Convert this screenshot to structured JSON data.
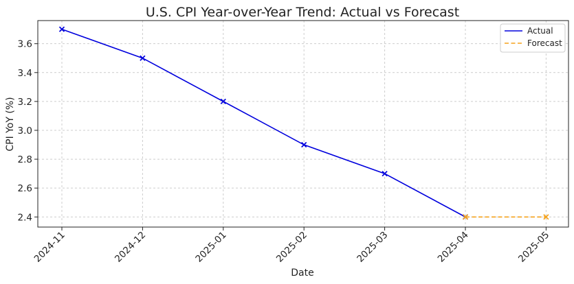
{
  "chart_data": {
    "type": "line",
    "title": "U.S. CPI Year-over-Year Trend: Actual vs Forecast",
    "xlabel": "Date",
    "ylabel": "CPI YoY (%)",
    "x_ticks": [
      "2024-11",
      "2024-12",
      "2025-01",
      "2025-02",
      "2025-03",
      "2025-04",
      "2025-05"
    ],
    "y_ticks": [
      "2.4",
      "2.6",
      "2.8",
      "3.0",
      "3.2",
      "3.4",
      "3.6"
    ],
    "ylim": [
      2.33,
      3.76
    ],
    "grid": true,
    "legend_position": "top-right",
    "series": [
      {
        "name": "Actual",
        "color": "#0000dd",
        "line_style": "solid",
        "marker": "x",
        "x": [
          "2024-11",
          "2024-12",
          "2025-01",
          "2025-02",
          "2025-03",
          "2025-04"
        ],
        "values": [
          3.7,
          3.5,
          3.2,
          2.9,
          2.7,
          2.4
        ]
      },
      {
        "name": "Forecast",
        "color": "#f5a21a",
        "line_style": "dashed",
        "marker": "x",
        "x": [
          "2025-04",
          "2025-05"
        ],
        "values": [
          2.4,
          2.4
        ]
      }
    ]
  }
}
